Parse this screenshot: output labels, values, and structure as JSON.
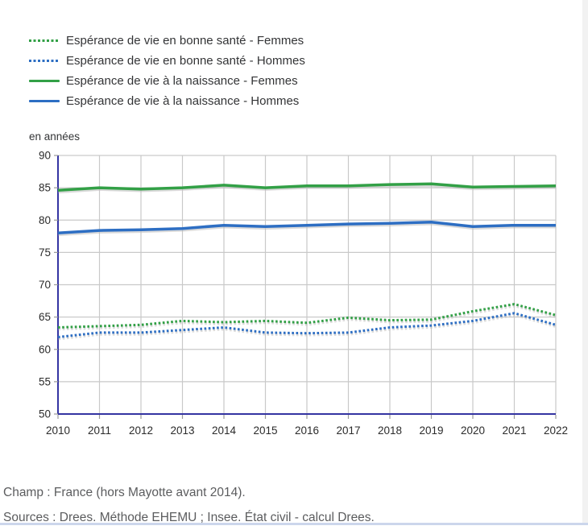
{
  "unit_label": "en années",
  "chart_data": {
    "type": "line",
    "title": "",
    "ylabel": "en années",
    "xlabel": "",
    "categories": [
      "2010",
      "2011",
      "2012",
      "2013",
      "2014",
      "2015",
      "2016",
      "2017",
      "2018",
      "2019",
      "2020",
      "2021",
      "2022"
    ],
    "ylim": [
      50,
      90
    ],
    "y_ticks": [
      50,
      55,
      60,
      65,
      70,
      75,
      80,
      85,
      90
    ],
    "grid": true,
    "legend_position": "top-left",
    "axis_color": "#3434a2",
    "grid_color": "#c9c9c9",
    "tick_color": "#9a9a9a",
    "label_color": "#2b2b2b",
    "series": [
      {
        "name": "Espérance de vie en bonne santé - Femmes",
        "style": "dotted",
        "color": "#32a046",
        "values": [
          63.4,
          63.6,
          63.8,
          64.4,
          64.2,
          64.4,
          64.1,
          64.9,
          64.5,
          64.6,
          65.9,
          67.0,
          65.3
        ]
      },
      {
        "name": "Espérance de vie en bonne santé - Hommes",
        "style": "dotted",
        "color": "#2d6ec3",
        "values": [
          61.9,
          62.6,
          62.6,
          63.0,
          63.4,
          62.6,
          62.5,
          62.6,
          63.4,
          63.7,
          64.4,
          65.6,
          63.8
        ]
      },
      {
        "name": "Espérance de vie à la naissance - Femmes",
        "style": "solid",
        "color": "#32a046",
        "values": [
          84.6,
          85.0,
          84.8,
          85.0,
          85.4,
          85.0,
          85.3,
          85.3,
          85.5,
          85.6,
          85.1,
          85.2,
          85.3
        ]
      },
      {
        "name": "Espérance de vie à la naissance - Hommes",
        "style": "solid",
        "color": "#2d6ec3",
        "values": [
          78.0,
          78.4,
          78.5,
          78.7,
          79.2,
          79.0,
          79.2,
          79.4,
          79.5,
          79.7,
          79.0,
          79.2,
          79.2
        ]
      }
    ]
  },
  "footer": {
    "champ": "Champ : France (hors Mayotte avant 2014).",
    "sources": "Sources : Drees. Méthode EHEMU ; Insee. État civil - calcul Drees."
  }
}
